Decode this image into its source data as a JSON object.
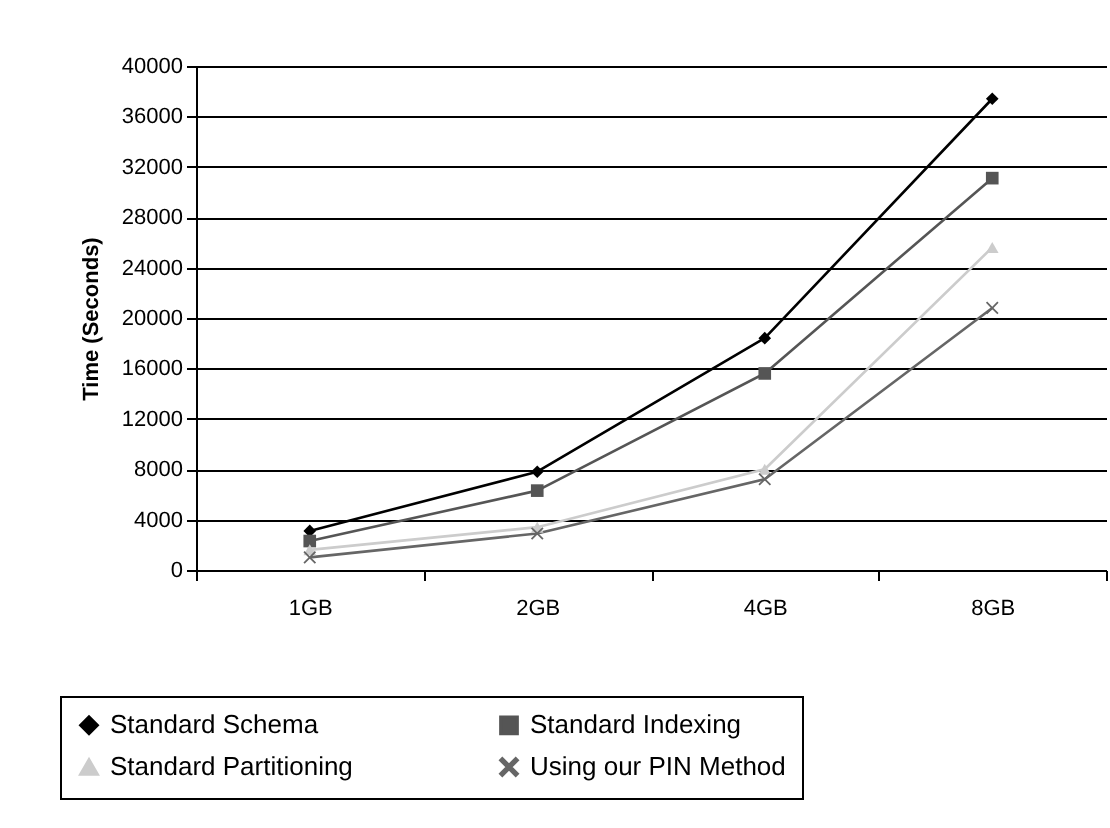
{
  "chart_data": {
    "type": "line",
    "ylabel": "Time (Seconds)",
    "categories": [
      "1GB",
      "2GB",
      "4GB",
      "8GB"
    ],
    "series": [
      {
        "name": "Standard Schema",
        "color": "#000000",
        "marker": "diamond",
        "values": [
          3100,
          7800,
          18400,
          37400
        ]
      },
      {
        "name": "Standard Indexing",
        "color": "#555555",
        "marker": "square",
        "values": [
          2300,
          6300,
          15600,
          31100
        ]
      },
      {
        "name": "Standard Partitioning",
        "color": "#cccccc",
        "marker": "triangle",
        "values": [
          1600,
          3400,
          8000,
          25600
        ]
      },
      {
        "name": "Using our PIN Method",
        "color": "#666666",
        "marker": "cross",
        "values": [
          1000,
          2900,
          7200,
          20800
        ]
      }
    ],
    "ylim": [
      0,
      40000
    ],
    "yticks": [
      0,
      4000,
      8000,
      12000,
      16000,
      20000,
      24000,
      28000,
      32000,
      36000,
      40000
    ],
    "grid": "y",
    "legend": "bottom"
  }
}
